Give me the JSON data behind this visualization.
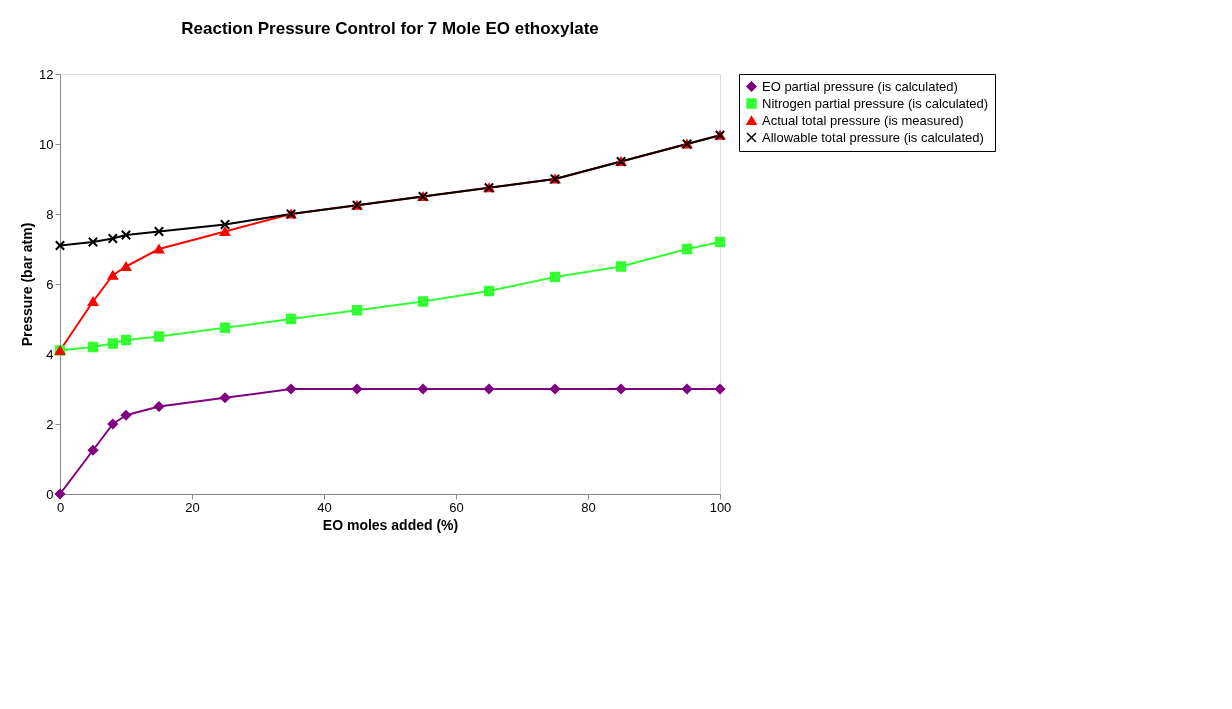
{
  "chart_data": {
    "type": "line",
    "title": "Reaction Pressure Control for 7 Mole EO ethoxylate",
    "xlabel": "EO moles added (%)",
    "ylabel": "Pressure (bar atm)",
    "x": [
      0,
      5,
      8,
      10,
      15,
      25,
      35,
      45,
      55,
      65,
      75,
      85,
      95,
      100
    ],
    "xlim": [
      0,
      100
    ],
    "xticks": [
      0,
      20,
      40,
      60,
      80,
      100
    ],
    "ylim": [
      0,
      12
    ],
    "yticks": [
      0,
      2,
      4,
      6,
      8,
      10,
      12
    ],
    "grid": false,
    "legend": "right",
    "line_style": "solid",
    "series": [
      {
        "name": "EO partial pressure (is calculated)",
        "color": "#800080",
        "marker": "diamond",
        "values": [
          0,
          1.25,
          2.0,
          2.25,
          2.5,
          2.75,
          3.0,
          3.0,
          3.0,
          3.0,
          3.0,
          3.0,
          3.0,
          3.0
        ]
      },
      {
        "name": "Nitrogen partial pressure (is calculated)",
        "color": "#33ff33",
        "marker": "square",
        "values": [
          4.1,
          4.2,
          4.3,
          4.4,
          4.5,
          4.75,
          5.0,
          5.25,
          5.5,
          5.8,
          6.2,
          6.5,
          7.0,
          7.2
        ]
      },
      {
        "name": "Actual total pressure (is measured)",
        "color": "#ff0000",
        "marker": "triangle",
        "values": [
          4.1,
          5.5,
          6.25,
          6.5,
          7.0,
          7.5,
          8.0,
          8.25,
          8.5,
          8.75,
          9.0,
          9.5,
          10.0,
          10.25
        ]
      },
      {
        "name": "Allowable total pressure (is calculated)",
        "color": "#000000",
        "marker": "cross",
        "values": [
          7.1,
          7.2,
          7.3,
          7.4,
          7.5,
          7.7,
          8.0,
          8.25,
          8.5,
          8.75,
          9.0,
          9.5,
          10.0,
          10.25
        ]
      }
    ]
  }
}
